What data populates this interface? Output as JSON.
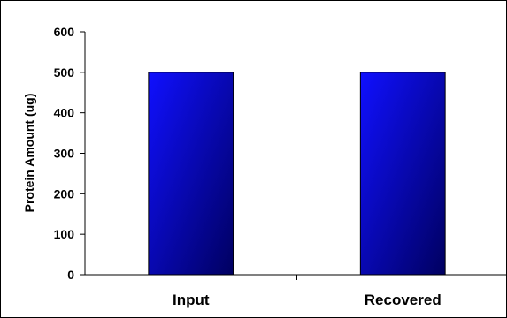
{
  "chart_data": {
    "type": "bar",
    "categories": [
      "Input",
      "Recovered"
    ],
    "values": [
      500,
      500
    ],
    "ylabel": "Protein Amount (ug)",
    "xlabel": "",
    "ylim": [
      0,
      600
    ],
    "yticks": [
      0,
      100,
      200,
      300,
      400,
      500,
      600
    ],
    "grid": false,
    "bar_gradient": [
      "#1010ff",
      "#000060"
    ]
  }
}
